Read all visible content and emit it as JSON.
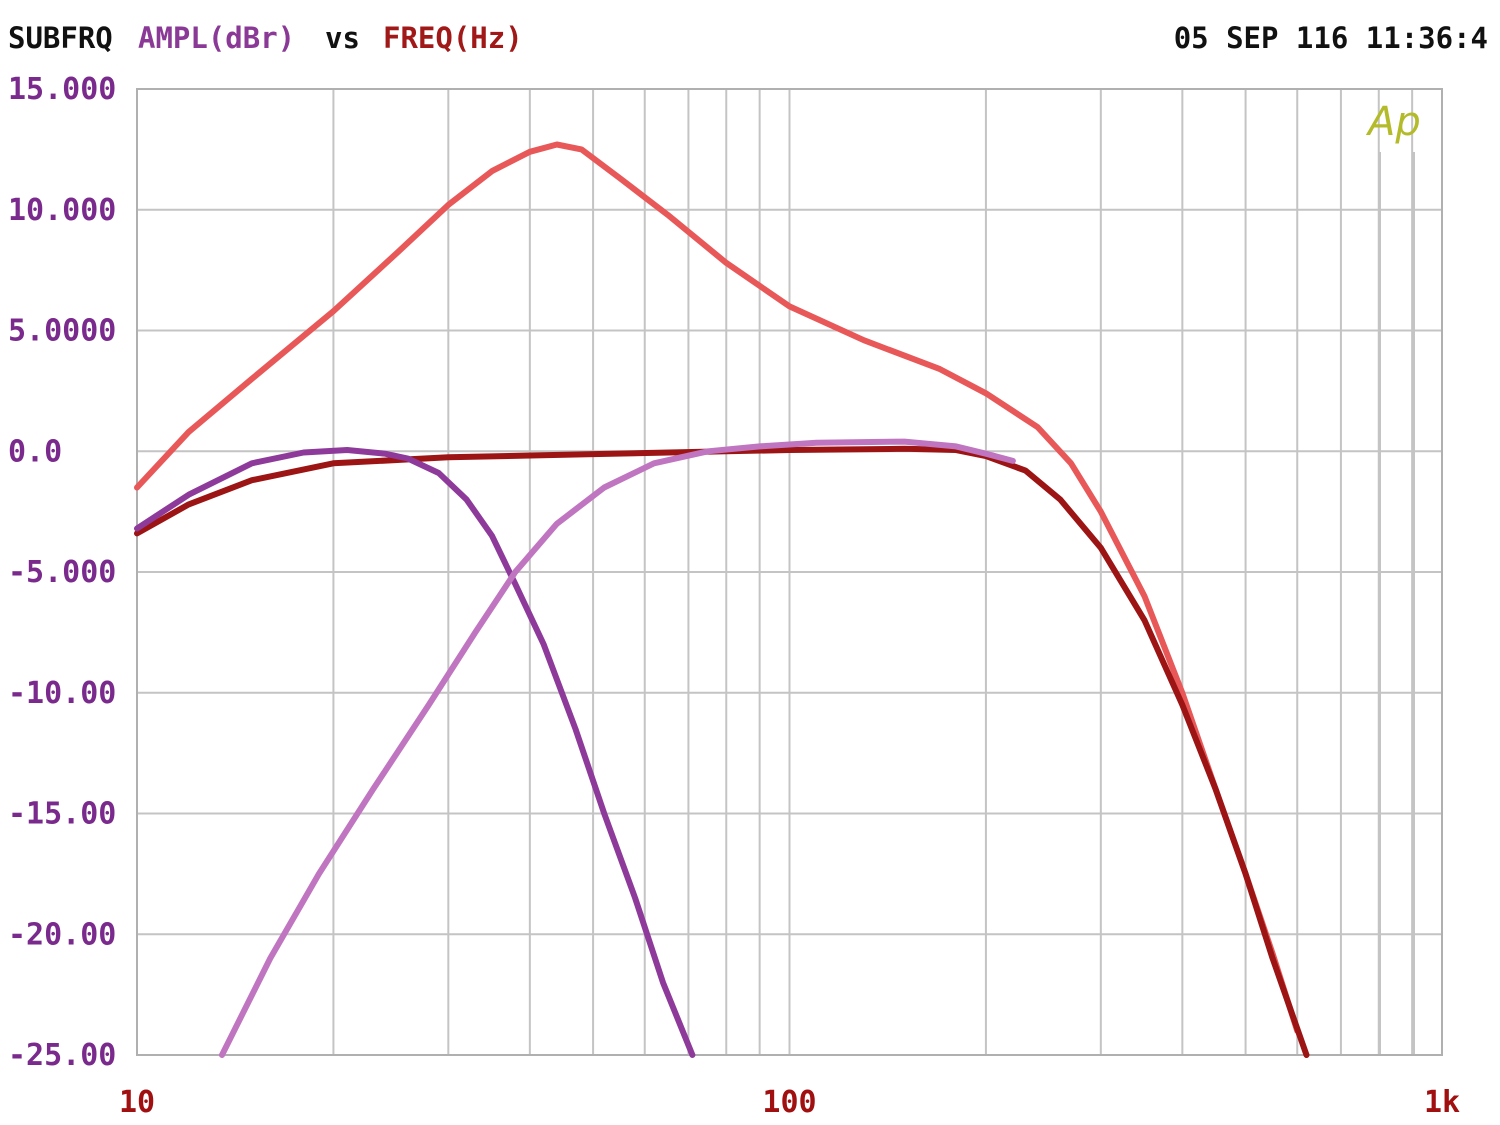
{
  "header": {
    "left": "SUBFRQ",
    "ylabel": "AMPL(dBr)",
    "vs": "vs",
    "xlabel": "FREQ(Hz)",
    "timestamp": "05 SEP 116 11:36:4",
    "logo": "Ap"
  },
  "colors": {
    "background": "#ffffff",
    "grid": "#c4c4c4",
    "frame": "#b0b0b0",
    "header_text": "#111111",
    "ylabel": "#8a3a96",
    "xlabel": "#a01818",
    "ytick": "#7a2a8c",
    "xtick": "#a01010",
    "logo": "#b4bb2a"
  },
  "chart_data": {
    "type": "line",
    "xscale": "log",
    "xlim": [
      10,
      1000
    ],
    "ylim": [
      -25,
      15
    ],
    "grid": true,
    "x_ticks": [
      {
        "value": 10,
        "label": "10"
      },
      {
        "value": 100,
        "label": "100"
      },
      {
        "value": 1000,
        "label": "1k"
      }
    ],
    "y_ticks": [
      {
        "value": 15,
        "label": "15.000"
      },
      {
        "value": 10,
        "label": "10.000"
      },
      {
        "value": 5,
        "label": "5.0000"
      },
      {
        "value": 0,
        "label": "0.0"
      },
      {
        "value": -5,
        "label": "-5.000"
      },
      {
        "value": -10,
        "label": "-10.00"
      },
      {
        "value": -15,
        "label": "-15.00"
      },
      {
        "value": -20,
        "label": "-20.00"
      },
      {
        "value": -25,
        "label": "-25.00"
      }
    ],
    "series": [
      {
        "color": "#e85858",
        "points": [
          [
            10,
            -1.5
          ],
          [
            12,
            0.8
          ],
          [
            15,
            3
          ],
          [
            20,
            5.8
          ],
          [
            25,
            8.2
          ],
          [
            30,
            10.2
          ],
          [
            35,
            11.6
          ],
          [
            40,
            12.4
          ],
          [
            44,
            12.7
          ],
          [
            48,
            12.5
          ],
          [
            55,
            11.3
          ],
          [
            65,
            9.8
          ],
          [
            80,
            7.8
          ],
          [
            100,
            6
          ],
          [
            130,
            4.6
          ],
          [
            170,
            3.4
          ],
          [
            200,
            2.4
          ],
          [
            240,
            1
          ],
          [
            270,
            -0.5
          ],
          [
            300,
            -2.5
          ],
          [
            350,
            -6
          ],
          [
            400,
            -10
          ],
          [
            450,
            -14
          ],
          [
            500,
            -17.5
          ],
          [
            550,
            -20.8
          ],
          [
            600,
            -24
          ]
        ]
      },
      {
        "color": "#9c1414",
        "points": [
          [
            10,
            -3.4
          ],
          [
            12,
            -2.2
          ],
          [
            15,
            -1.2
          ],
          [
            20,
            -0.5
          ],
          [
            30,
            -0.25
          ],
          [
            50,
            -0.12
          ],
          [
            80,
            0
          ],
          [
            100,
            0.05
          ],
          [
            150,
            0.1
          ],
          [
            180,
            0.05
          ],
          [
            200,
            -0.2
          ],
          [
            230,
            -0.8
          ],
          [
            260,
            -2
          ],
          [
            300,
            -4
          ],
          [
            350,
            -7
          ],
          [
            400,
            -10.5
          ],
          [
            450,
            -14
          ],
          [
            500,
            -17.5
          ],
          [
            550,
            -21
          ],
          [
            620,
            -25
          ]
        ]
      },
      {
        "color": "#8e3a9a",
        "points": [
          [
            10,
            -3.2
          ],
          [
            12,
            -1.8
          ],
          [
            15,
            -0.5
          ],
          [
            18,
            -0.05
          ],
          [
            21,
            0.05
          ],
          [
            24,
            -0.1
          ],
          [
            26,
            -0.3
          ],
          [
            29,
            -0.9
          ],
          [
            32,
            -2
          ],
          [
            35,
            -3.5
          ],
          [
            38,
            -5.5
          ],
          [
            42,
            -8
          ],
          [
            47,
            -11.5
          ],
          [
            52,
            -15
          ],
          [
            58,
            -18.5
          ],
          [
            64,
            -22
          ],
          [
            71,
            -25
          ]
        ]
      },
      {
        "color": "#c075c0",
        "points": [
          [
            13.5,
            -25
          ],
          [
            16,
            -21
          ],
          [
            19,
            -17.5
          ],
          [
            23,
            -14
          ],
          [
            28,
            -10.5
          ],
          [
            33,
            -7.5
          ],
          [
            38,
            -5
          ],
          [
            44,
            -3
          ],
          [
            52,
            -1.5
          ],
          [
            62,
            -0.5
          ],
          [
            75,
            0
          ],
          [
            90,
            0.2
          ],
          [
            110,
            0.35
          ],
          [
            150,
            0.4
          ],
          [
            180,
            0.2
          ],
          [
            200,
            -0.1
          ],
          [
            220,
            -0.4
          ]
        ]
      }
    ]
  }
}
